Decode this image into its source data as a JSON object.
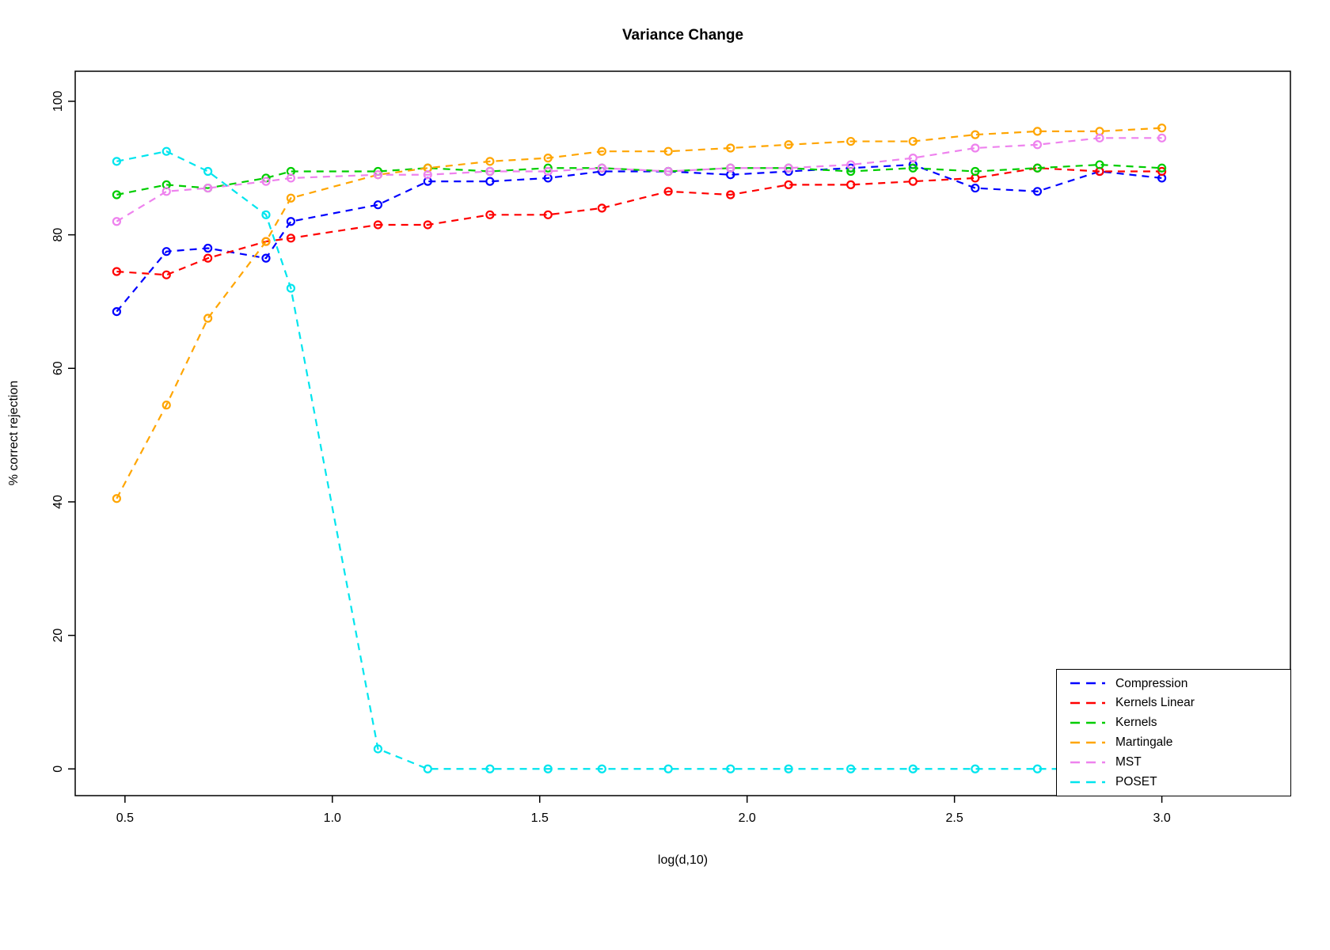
{
  "chart_data": {
    "type": "line",
    "title": "Variance Change",
    "xlabel": "log(d,10)",
    "ylabel": "% correct rejection",
    "xlim": [
      0.38,
      3.31
    ],
    "ylim": [
      -4,
      104.5
    ],
    "x_ticks": [
      0.5,
      1.0,
      1.5,
      2.0,
      2.5,
      3.0
    ],
    "y_ticks": [
      0,
      20,
      40,
      60,
      80,
      100
    ],
    "grid": false,
    "legend_position": "bottom-right",
    "marker": "open-circle",
    "line_style": "dashed",
    "x": [
      0.48,
      0.6,
      0.7,
      0.84,
      0.9,
      1.11,
      1.23,
      1.38,
      1.52,
      1.65,
      1.81,
      1.96,
      2.1,
      2.25,
      2.4,
      2.55,
      2.7,
      2.85,
      3.0
    ],
    "series": [
      {
        "name": "Compression",
        "color": "#0000ff",
        "values": [
          68.5,
          77.5,
          78.0,
          76.5,
          82.0,
          84.5,
          88.0,
          88.0,
          88.5,
          89.5,
          89.5,
          89.0,
          89.5,
          90.0,
          90.5,
          87.0,
          86.5,
          89.5,
          88.5
        ]
      },
      {
        "name": "Kernels Linear",
        "color": "#ff0000",
        "values": [
          74.5,
          74.0,
          76.5,
          79.0,
          79.5,
          81.5,
          81.5,
          83.0,
          83.0,
          84.0,
          86.5,
          86.0,
          87.5,
          87.5,
          88.0,
          88.5,
          90.0,
          89.5,
          89.5
        ]
      },
      {
        "name": "Kernels",
        "color": "#00cd00",
        "values": [
          86.0,
          87.5,
          87.0,
          88.5,
          89.5,
          89.5,
          90.0,
          89.5,
          90.0,
          90.0,
          89.5,
          90.0,
          90.0,
          89.5,
          90.0,
          89.5,
          90.0,
          90.5,
          90.0
        ]
      },
      {
        "name": "Martingale",
        "color": "#ffa500",
        "values": [
          40.5,
          54.5,
          67.5,
          79.0,
          85.5,
          89.0,
          90.0,
          91.0,
          91.5,
          92.5,
          92.5,
          93.0,
          93.5,
          94.0,
          94.0,
          95.0,
          95.5,
          95.5,
          96.0
        ]
      },
      {
        "name": "MST",
        "color": "#ee82ee",
        "values": [
          82.0,
          86.5,
          87.0,
          88.0,
          88.5,
          89.0,
          89.0,
          89.5,
          89.5,
          90.0,
          89.5,
          90.0,
          90.0,
          90.5,
          91.5,
          93.0,
          93.5,
          94.5,
          94.5
        ]
      },
      {
        "name": "POSET",
        "color": "#00e5ee",
        "values": [
          91.0,
          92.5,
          89.5,
          83.0,
          72.0,
          3.0,
          0.0,
          0.0,
          0.0,
          0.0,
          0.0,
          0.0,
          0.0,
          0.0,
          0.0,
          0.0,
          0.0,
          0.0,
          0.0
        ]
      }
    ]
  }
}
